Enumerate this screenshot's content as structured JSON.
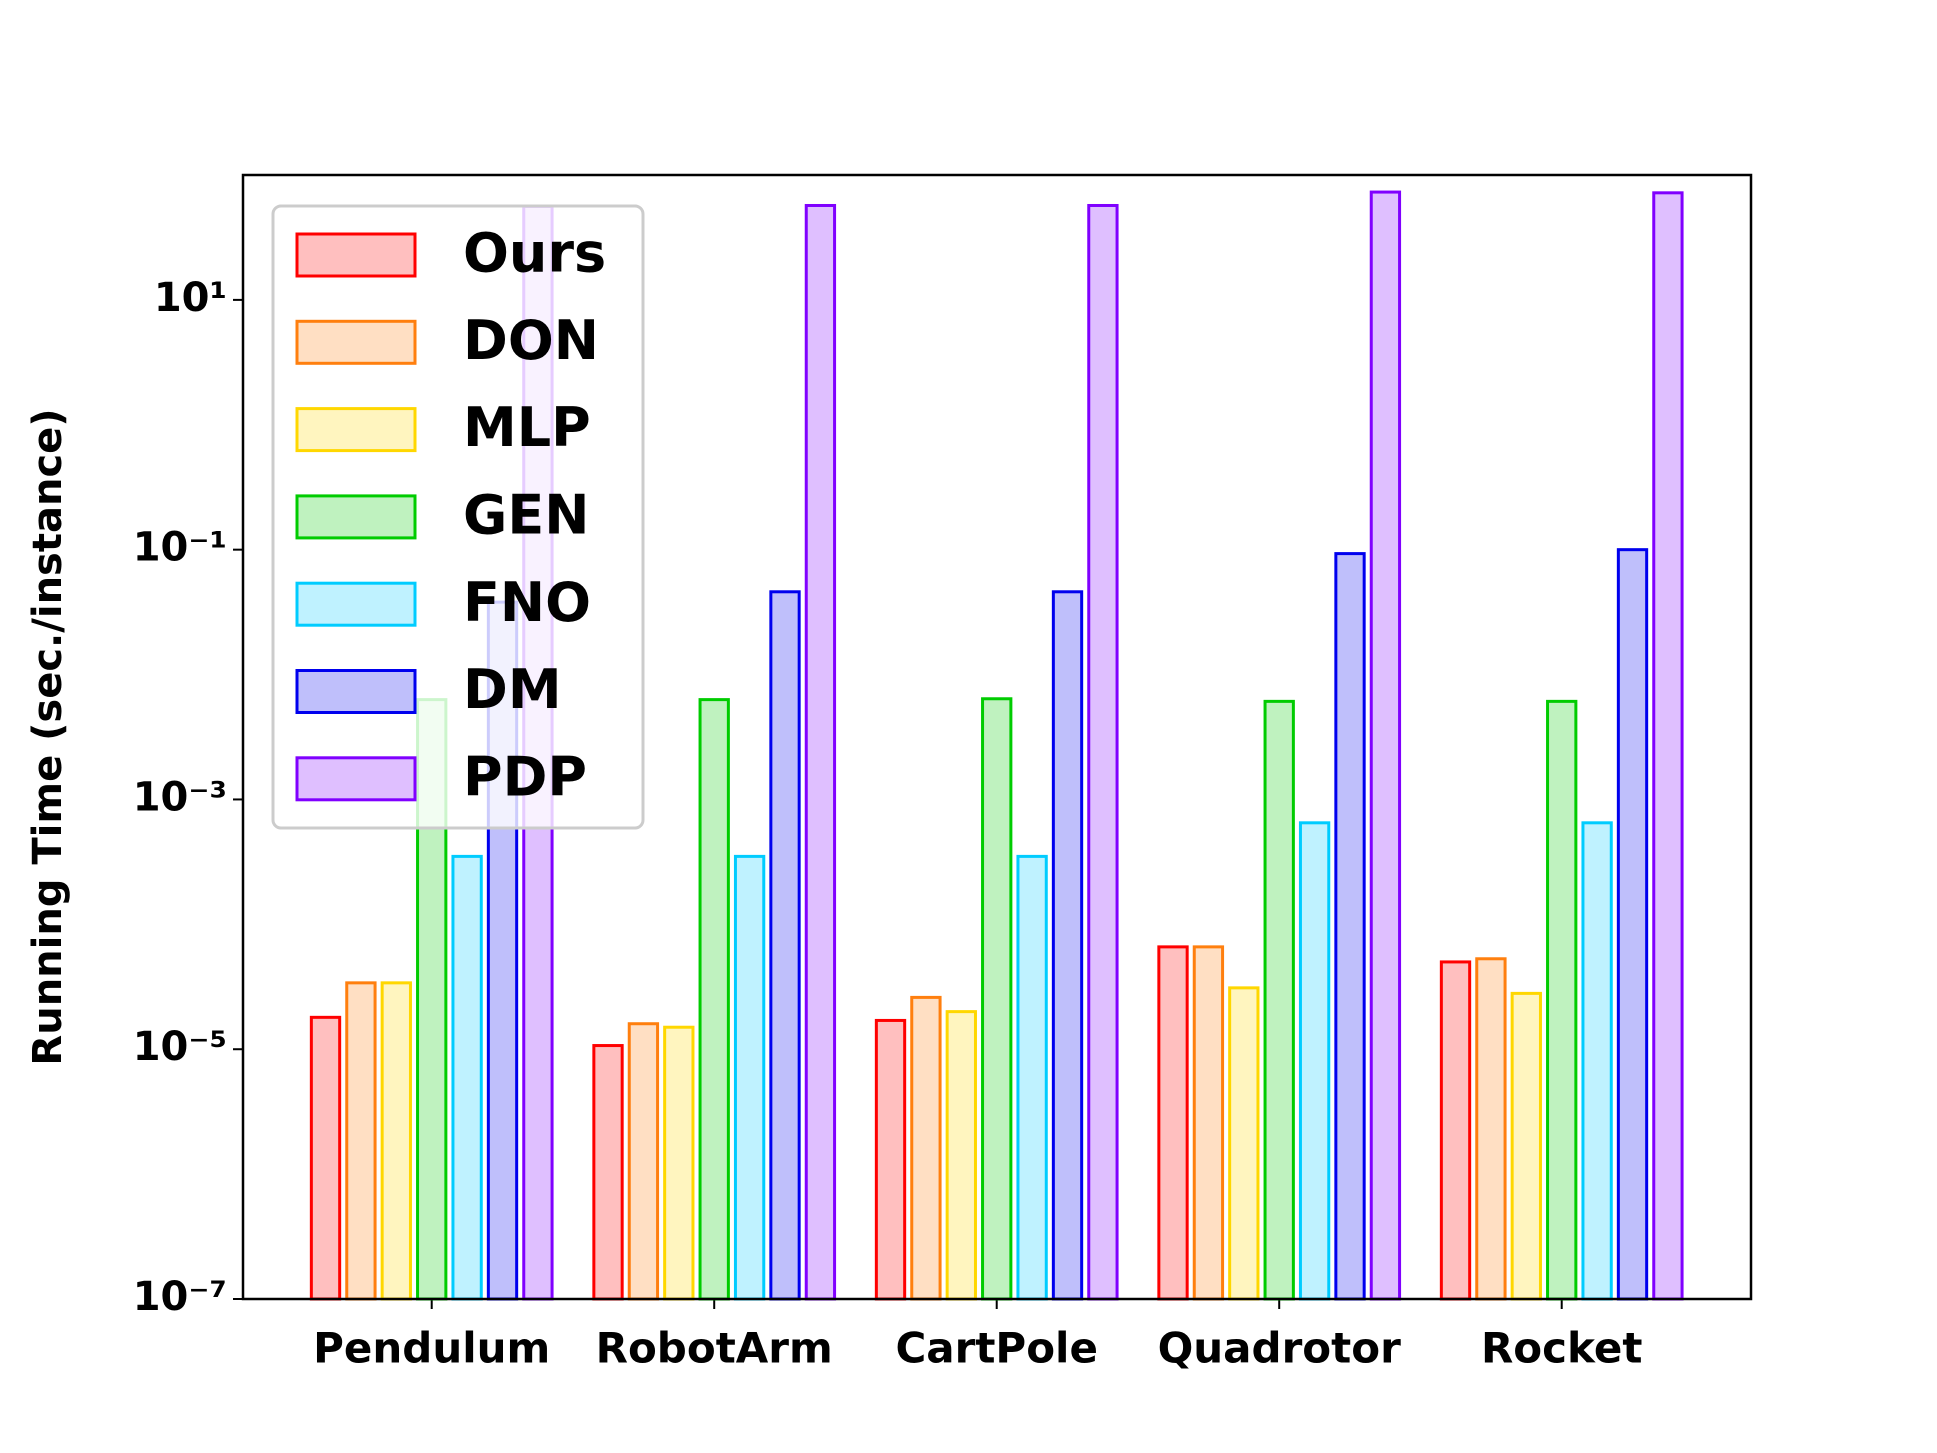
{
  "chart_data": {
    "type": "bar",
    "y_label": "Running Time (sec./instance)",
    "y_log_scale": true,
    "legend_position": "upper left",
    "categories": [
      "Pendulum",
      "RobotArm",
      "CartPole",
      "Quadrotor",
      "Rocket"
    ],
    "series": [
      {
        "name": "Ours",
        "color": "#ff0000",
        "values": [
          1.8e-05,
          1.07e-05,
          1.7e-05,
          6.6e-05,
          5e-05
        ]
      },
      {
        "name": "DON",
        "color": "#ff7f0e",
        "values": [
          3.4e-05,
          1.6e-05,
          2.6e-05,
          6.6e-05,
          5.3e-05
        ]
      },
      {
        "name": "MLP",
        "color": "#ffd700",
        "values": [
          3.4e-05,
          1.5e-05,
          2e-05,
          3.1e-05,
          2.8e-05
        ]
      },
      {
        "name": "GEN",
        "color": "#00cc00",
        "values": [
          0.0063,
          0.0063,
          0.0064,
          0.0061,
          0.0061
        ]
      },
      {
        "name": "FNO",
        "color": "#00ccff",
        "values": [
          0.00035,
          0.00035,
          0.00035,
          0.00065,
          0.00065
        ]
      },
      {
        "name": "DM",
        "color": "#0000ee",
        "values": [
          0.038,
          0.046,
          0.046,
          0.093,
          0.1
        ]
      },
      {
        "name": "PDP",
        "color": "#8000ff",
        "values": [
          56,
          57,
          57,
          73,
          72
        ]
      }
    ],
    "ylim": [
      1e-07,
      100
    ],
    "yticks": [
      {
        "value": 1e-07,
        "label": "10⁻⁷"
      },
      {
        "value": 1e-05,
        "label": "10⁻⁵"
      },
      {
        "value": 0.001,
        "label": "10⁻³"
      },
      {
        "value": 0.1,
        "label": "10⁻¹"
      },
      {
        "value": 10,
        "label": "10¹"
      }
    ]
  }
}
